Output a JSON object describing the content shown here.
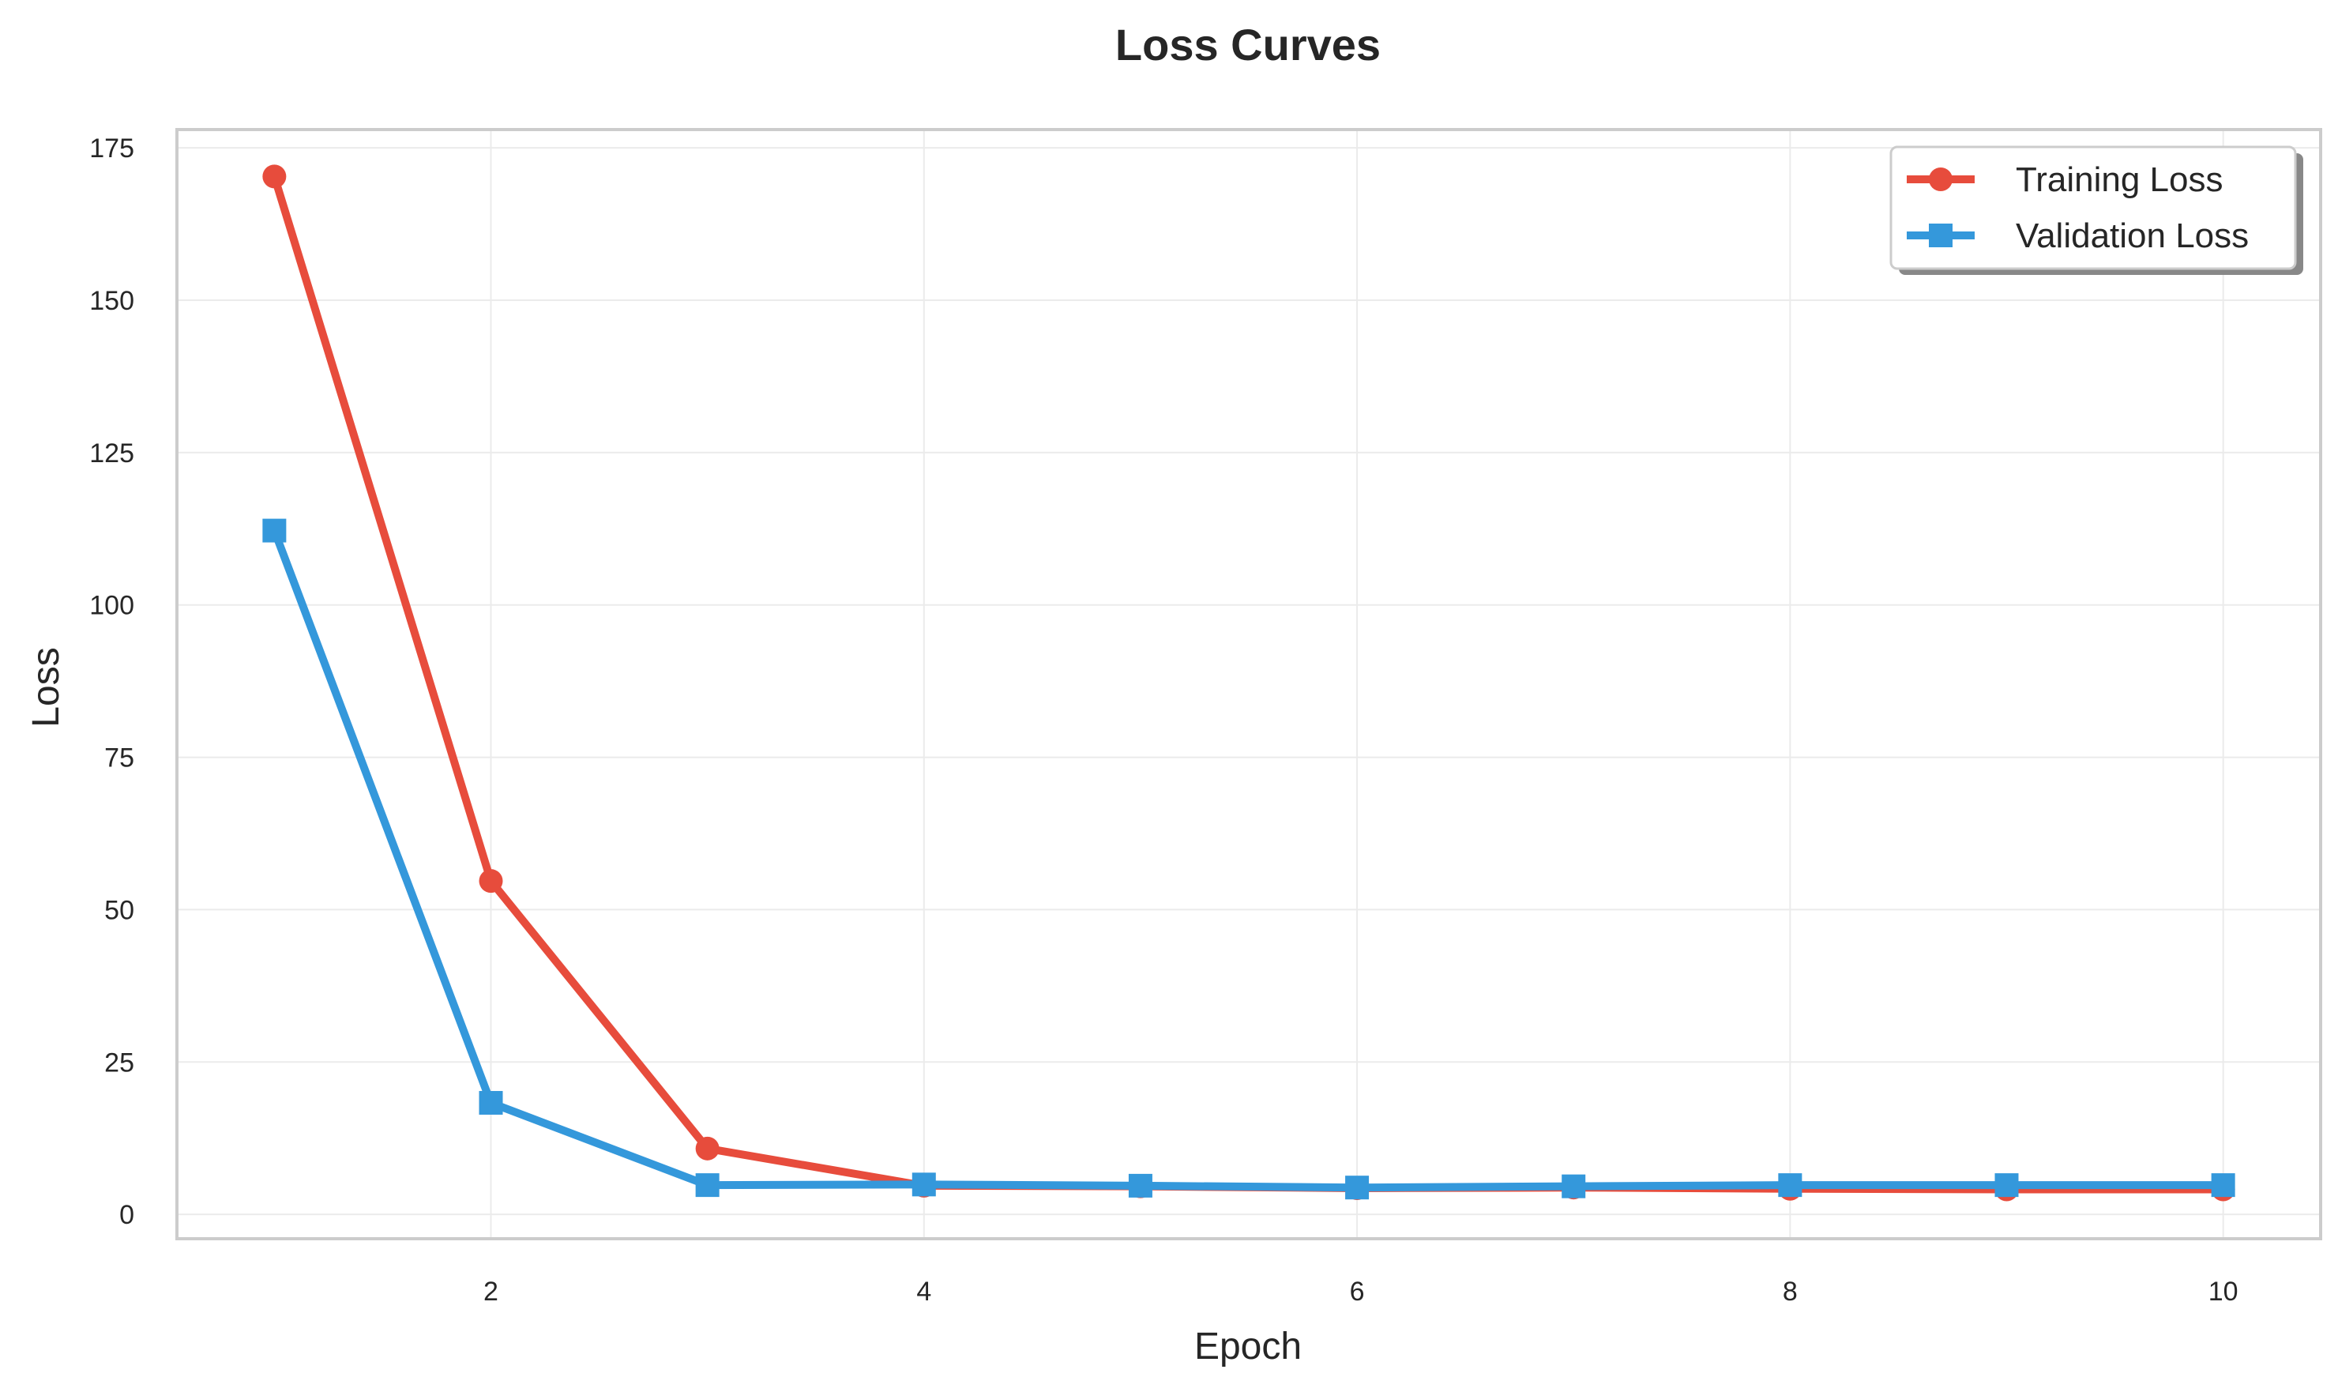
{
  "chart_data": {
    "type": "line",
    "title": "Loss Curves",
    "xlabel": "Epoch",
    "ylabel": "Loss",
    "x": [
      1,
      2,
      3,
      4,
      5,
      6,
      7,
      8,
      9,
      10
    ],
    "series": [
      {
        "name": "Training Loss",
        "color": "#e74c3c",
        "marker": "circle",
        "values": [
          170.3,
          54.7,
          10.8,
          4.7,
          4.6,
          4.3,
          4.4,
          4.2,
          4.1,
          4.1
        ]
      },
      {
        "name": "Validation Loss",
        "color": "#3498db",
        "marker": "square",
        "values": [
          112.2,
          18.3,
          4.8,
          4.9,
          4.7,
          4.4,
          4.6,
          4.8,
          4.8,
          4.8
        ]
      }
    ],
    "xlim": [
      0.55,
      10.45
    ],
    "ylim": [
      -4,
      178
    ],
    "xticks": [
      2,
      4,
      6,
      8,
      10
    ],
    "yticks": [
      0,
      25,
      50,
      75,
      100,
      125,
      150,
      175
    ],
    "grid": true,
    "legend_position": "top-right"
  }
}
